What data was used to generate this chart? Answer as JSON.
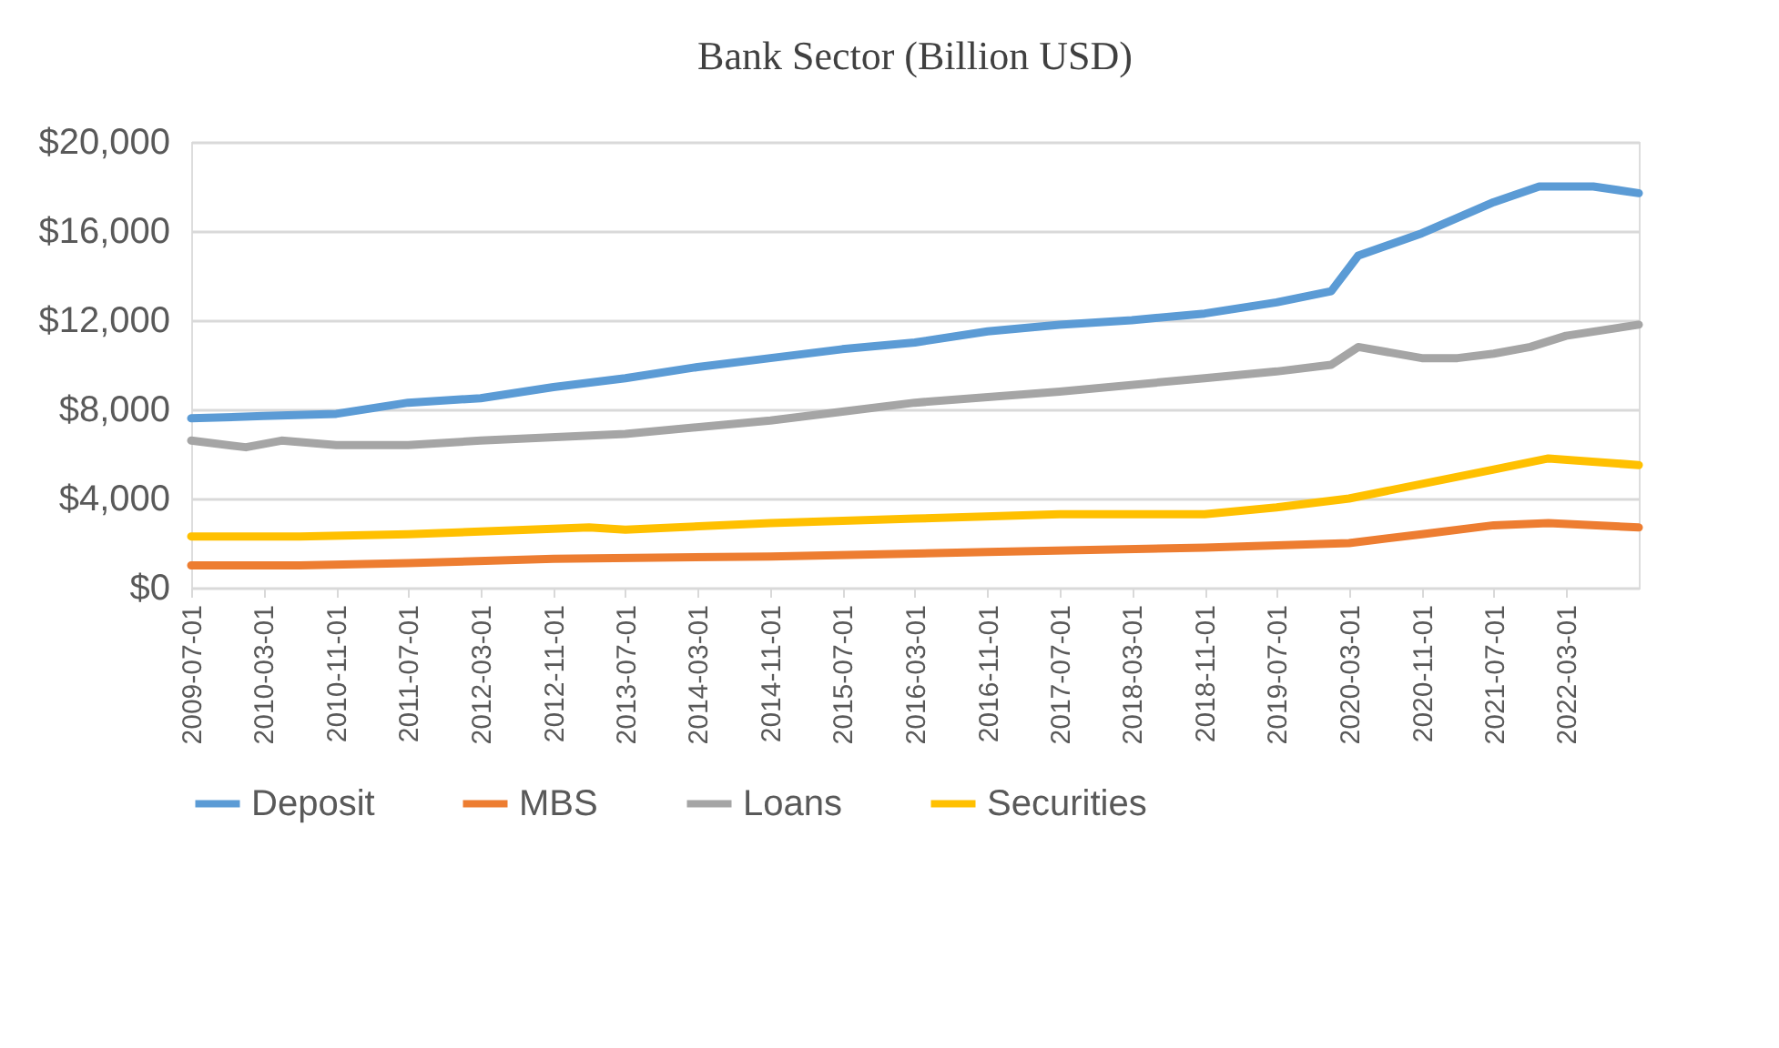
{
  "chart_data": {
    "type": "line",
    "title": "Bank Sector (Billion USD)",
    "xlim": [
      "2009-07-01",
      "2022-11-01"
    ],
    "xticks": [
      "2009-07-01",
      "2010-03-01",
      "2010-11-01",
      "2011-07-01",
      "2012-03-01",
      "2012-11-01",
      "2013-07-01",
      "2014-03-01",
      "2014-11-01",
      "2015-07-01",
      "2016-03-01",
      "2016-11-01",
      "2017-07-01",
      "2018-03-01",
      "2018-11-01",
      "2019-07-01",
      "2020-03-01",
      "2020-11-01",
      "2021-07-01",
      "2022-03-01"
    ],
    "ylim": [
      0,
      20000
    ],
    "yticks": [
      {
        "value": 0,
        "label": "$0"
      },
      {
        "value": 4000,
        "label": "$4,000"
      },
      {
        "value": 8000,
        "label": "$8,000"
      },
      {
        "value": 12000,
        "label": "$12,000"
      },
      {
        "value": 16000,
        "label": "$16,000"
      },
      {
        "value": 20000,
        "label": "$20,000"
      }
    ],
    "grid": "y",
    "legend": "bottom",
    "marker": "none",
    "line_style": "solid",
    "series": [
      {
        "name": "Deposit",
        "color": "#5b9bd5",
        "x": [
          "2009-07-01",
          "2010-03-01",
          "2010-11-01",
          "2011-07-01",
          "2012-03-01",
          "2012-11-01",
          "2013-07-01",
          "2014-03-01",
          "2014-11-01",
          "2015-07-01",
          "2016-03-01",
          "2016-11-01",
          "2017-07-01",
          "2018-03-01",
          "2018-11-01",
          "2019-07-01",
          "2020-01-01",
          "2020-04-01",
          "2020-11-01",
          "2021-07-01",
          "2021-12-01",
          "2022-06-01",
          "2022-11-01"
        ],
        "values": [
          7600,
          7700,
          7800,
          8300,
          8500,
          9000,
          9400,
          9900,
          10300,
          10700,
          11000,
          11500,
          11800,
          12000,
          12300,
          12800,
          13300,
          14900,
          15900,
          17300,
          18000,
          18000,
          17700
        ]
      },
      {
        "name": "MBS",
        "color": "#ed7d31",
        "x": [
          "2009-07-01",
          "2010-07-01",
          "2011-07-01",
          "2012-11-01",
          "2014-11-01",
          "2016-11-01",
          "2018-11-01",
          "2020-03-01",
          "2020-11-01",
          "2021-07-01",
          "2022-01-01",
          "2022-11-01"
        ],
        "values": [
          1000,
          1000,
          1100,
          1300,
          1400,
          1600,
          1800,
          2000,
          2400,
          2800,
          2900,
          2700
        ]
      },
      {
        "name": "Loans",
        "color": "#a5a5a5",
        "x": [
          "2009-07-01",
          "2010-01-01",
          "2010-05-01",
          "2010-11-01",
          "2011-07-01",
          "2012-03-01",
          "2013-07-01",
          "2014-11-01",
          "2015-07-01",
          "2016-03-01",
          "2017-07-01",
          "2018-11-01",
          "2019-07-01",
          "2020-01-01",
          "2020-04-01",
          "2020-11-01",
          "2021-03-01",
          "2021-07-01",
          "2021-11-01",
          "2022-03-01",
          "2022-11-01"
        ],
        "values": [
          6600,
          6300,
          6600,
          6400,
          6400,
          6600,
          6900,
          7500,
          7900,
          8300,
          8800,
          9400,
          9700,
          10000,
          10800,
          10300,
          10300,
          10500,
          10800,
          11300,
          11800
        ]
      },
      {
        "name": "Securities",
        "color": "#ffc000",
        "x": [
          "2009-07-01",
          "2010-07-01",
          "2011-07-01",
          "2013-03-01",
          "2013-07-01",
          "2014-11-01",
          "2016-03-01",
          "2017-07-01",
          "2018-11-01",
          "2019-07-01",
          "2020-03-01",
          "2021-07-01",
          "2022-01-01",
          "2022-11-01"
        ],
        "values": [
          2300,
          2300,
          2400,
          2700,
          2600,
          2900,
          3100,
          3300,
          3300,
          3600,
          4000,
          5300,
          5800,
          5500
        ]
      }
    ]
  }
}
